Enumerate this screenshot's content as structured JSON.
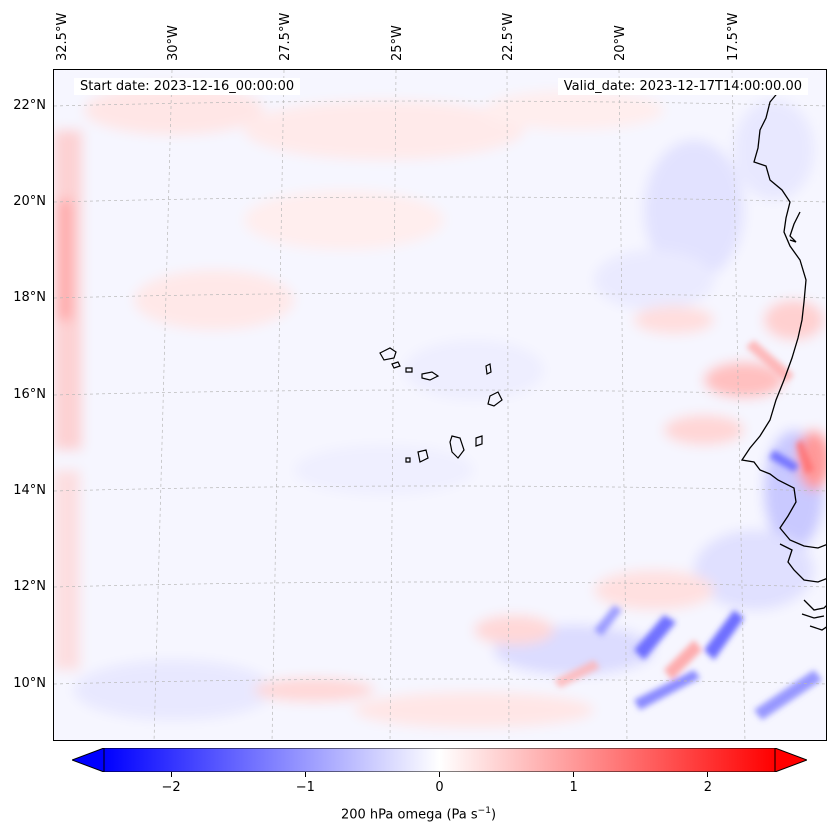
{
  "map": {
    "start_date": "Start date: 2023-12-16_00:00:00",
    "valid_date": "Valid_date: 2023-12-17T14:00:00.00",
    "lon_labels": [
      "32.5°W",
      "30°W",
      "27.5°W",
      "25°W",
      "22.5°W",
      "20°W",
      "17.5°W"
    ],
    "lat_labels": [
      "22°N",
      "20°N",
      "18°N",
      "16°N",
      "14°N",
      "12°N",
      "10°N"
    ],
    "field": "200 hPa omega",
    "region": "Cape Verde Islands and West African coast"
  },
  "chart_data": {
    "type": "heatmap",
    "title": "",
    "variable": "200 hPa omega",
    "units": "Pa s⁻¹",
    "colormap": "bwr",
    "range": [
      -2.5,
      2.5
    ],
    "colorbar_ticks": [
      "−2",
      "−1",
      "0",
      "1",
      "2"
    ],
    "colorbar_tick_values": [
      -2,
      -1,
      0,
      1,
      2
    ],
    "colorbar_extend": "both",
    "colorbar_label": "200 hPa omega (Pa s",
    "colorbar_label_exp": "−1",
    "colorbar_label_end": ")"
  },
  "colors": {
    "negative": "#0000ff",
    "positive": "#ff0000",
    "neutral": "#ffffff",
    "coast": "#000000"
  }
}
